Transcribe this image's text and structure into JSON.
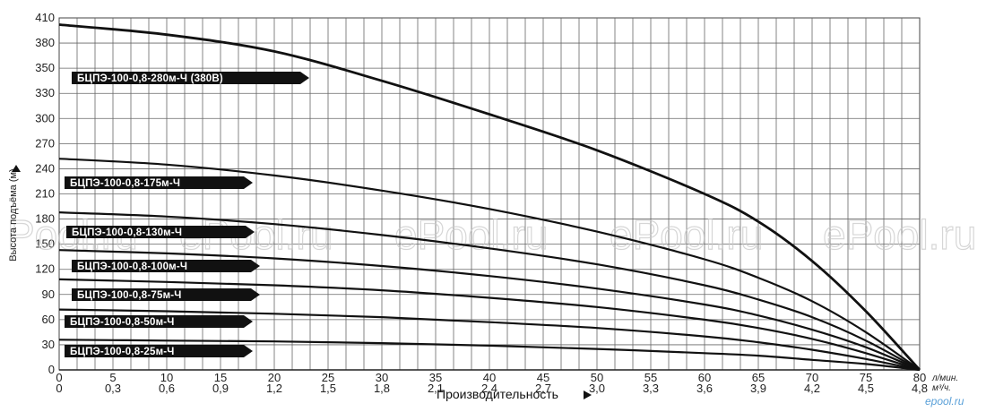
{
  "chart_data": {
    "type": "line",
    "ylabel": "Высота подъёма (м)",
    "xlabel": "Производительность",
    "x_unit_primary": "л/мин.",
    "x_unit_secondary": "м³/ч.",
    "xlim": [
      0,
      80
    ],
    "ylim": [
      0,
      410
    ],
    "x_ticks_lpm": [
      "0",
      "5",
      "10",
      "15",
      "20",
      "25",
      "30",
      "35",
      "40",
      "45",
      "50",
      "55",
      "60",
      "65",
      "70",
      "75",
      "80"
    ],
    "x_ticks_m3h": [
      "0",
      "0,3",
      "0,6",
      "0,9",
      "1,2",
      "1,5",
      "1,8",
      "2,1",
      "2,4",
      "2,7",
      "3,0",
      "3,3",
      "3,6",
      "3,9",
      "4,2",
      "4,5",
      "4,8"
    ],
    "y_ticks": [
      "0",
      "30",
      "60",
      "90",
      "120",
      "150",
      "180",
      "210",
      "240",
      "270",
      "300",
      "330",
      "350",
      "380",
      "410"
    ],
    "grid": true,
    "series": [
      {
        "name": "БЦПЭ-100-0,8-280м-Ч (380В)",
        "x": [
          0,
          10,
          20,
          30,
          40,
          50,
          60,
          65,
          70,
          75,
          80
        ],
        "y": [
          402,
          390,
          370,
          340,
          305,
          262,
          210,
          177,
          130,
          70,
          0
        ]
      },
      {
        "name": "БЦПЭ-100-0,8-175м-Ч",
        "x": [
          0,
          10,
          20,
          30,
          40,
          50,
          60,
          65,
          70,
          75,
          80
        ],
        "y": [
          252,
          245,
          232,
          214,
          192,
          165,
          132,
          110,
          82,
          45,
          0
        ]
      },
      {
        "name": "БЦПЭ-100-0,8-130м-Ч",
        "x": [
          0,
          10,
          20,
          30,
          40,
          50,
          60,
          65,
          70,
          75,
          80
        ],
        "y": [
          188,
          183,
          174,
          161,
          145,
          126,
          101,
          84,
          63,
          35,
          0
        ]
      },
      {
        "name": "БЦПЭ-100-0,8-100м-Ч",
        "x": [
          0,
          10,
          20,
          30,
          40,
          50,
          60,
          65,
          70,
          75,
          80
        ],
        "y": [
          143,
          139,
          133,
          124,
          112,
          97,
          78,
          65,
          48,
          27,
          0
        ]
      },
      {
        "name": "БЦПЭ-100-0,8-75м-Ч",
        "x": [
          0,
          10,
          20,
          30,
          40,
          50,
          60,
          65,
          70,
          75,
          80
        ],
        "y": [
          108,
          105,
          101,
          95,
          86,
          75,
          60,
          50,
          37,
          20,
          0
        ]
      },
      {
        "name": "БЦПЭ-100-0,8-50м-Ч",
        "x": [
          0,
          10,
          20,
          30,
          40,
          50,
          60,
          65,
          70,
          75,
          80
        ],
        "y": [
          72,
          70,
          67,
          63,
          57,
          50,
          40,
          33,
          24,
          13,
          0
        ]
      },
      {
        "name": "БЦПЭ-100-0,8-25м-Ч",
        "x": [
          0,
          10,
          20,
          30,
          40,
          50,
          60,
          65,
          70,
          75,
          80
        ],
        "y": [
          36,
          35,
          34,
          32,
          29,
          25,
          20,
          17,
          12,
          7,
          0
        ]
      }
    ]
  },
  "watermarks": [
    "Pool.ru",
    "ePool.ru",
    "ePool.ru",
    "ePool.ru",
    "ePool.ru"
  ],
  "corner_mark": "epool.ru"
}
